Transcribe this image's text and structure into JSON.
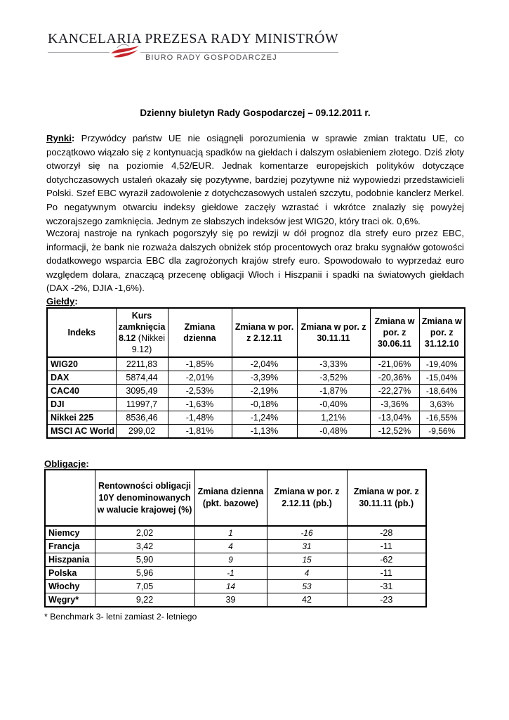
{
  "header": {
    "org_name": "KANCELARIA PREZESA RADY MINISTRÓW",
    "sub_org": "BIURO RADY GOSPODARCZEJ",
    "logo_icon": "red-swoosh-flag-icon",
    "colors": {
      "accent_red": "#c5242b",
      "rule_gray": "#a8a8ac",
      "subtitle_gray": "#47474c",
      "ink": "#000000"
    }
  },
  "document": {
    "title": "Dzienny biuletyn Rady Gospodarczej – 09.12.2011 r.",
    "paragraphs": [
      {
        "label": "Rynki",
        "label_suffix": ":",
        "text": "Przywódcy państw UE nie osiągnęli porozumienia w sprawie zmian traktatu UE, co początkowo wiązało się z kontynuacją spadków na giełdach i dalszym osłabieniem złotego. Dziś złoty otworzył się na poziomie 4,52/EUR. Jednak komentarze europejskich polityków dotyczące dotychczasowych ustaleń okazały się pozytywne, bardziej pozytywne niż wypowiedzi przedstawicieli Polski. Szef EBC wyraził zadowolenie z dotychczasowych ustaleń szczytu, podobnie kanclerz Merkel. Po negatywnym otwarciu indeksy giełdowe zaczęły wzrastać i wkrótce znalazły się powyżej wczorajszego zamknięcia. Jednym ze słabszych indeksów jest WIG20, który traci ok. 0,6%."
      },
      {
        "label": "",
        "label_suffix": "",
        "text": "Wczoraj nastroje na rynkach pogorszyły się po rewizji w dół prognoz dla strefy euro przez EBC, informacji, że bank nie rozważa dalszych obniżek stóp procentowych oraz braku sygnałów gotowości dodatkowego wsparcia EBC dla zagrożonych krajów strefy euro. Spowodowało to wyprzedaż euro względem dolara, znaczącą przecenę obligacji Włoch i Hiszpanii i spadki na światowych giełdach (DAX -2%, DJIA -1,6%)."
      }
    ]
  },
  "markets_section": {
    "heading": "Giełdy",
    "heading_suffix": ":",
    "table": {
      "headers": [
        {
          "bold": "Indeks",
          "normal": ""
        },
        {
          "bold": "Kurs zamknięcia 8.12",
          "normal": " (Nikkei 9.12)"
        },
        {
          "bold": "Zmiana dzienna",
          "normal": ""
        },
        {
          "bold": "Zmiana w por. z 2.12.11",
          "normal": ""
        },
        {
          "bold": "Zmiana w por. z 30.11.11",
          "normal": ""
        },
        {
          "bold": "Zmiana w por. z 30.06.11",
          "normal": ""
        },
        {
          "bold": "Zmiana w por. z 31.12.10",
          "normal": ""
        }
      ],
      "rows": [
        [
          "WIG20",
          "2211,83",
          "-1,85%",
          "-2,04%",
          "-3,33%",
          "-21,06%",
          "-19,40%"
        ],
        [
          "DAX",
          "5874,44",
          "-2,01%",
          "-3,39%",
          "-3,52%",
          "-20,36%",
          "-15,04%"
        ],
        [
          "CAC40",
          "3095,49",
          "-2,53%",
          "-2,19%",
          "-1,87%",
          "-22,27%",
          "-18,64%"
        ],
        [
          "DJI",
          "11997,7",
          "-1,63%",
          "-0,18%",
          "-0,40%",
          "-3,36%",
          "3,63%"
        ],
        [
          "Nikkei 225",
          "8536,46",
          "-1,48%",
          "-1,24%",
          "1,21%",
          "-13,04%",
          "-16,55%"
        ],
        [
          "MSCI AC World",
          "299,02",
          "-1,81%",
          "-1,13%",
          "-0,48%",
          "-12,52%",
          "-9,56%"
        ]
      ]
    }
  },
  "bonds_section": {
    "heading": "Obligacje",
    "heading_suffix": ":",
    "table": {
      "headers": [
        {
          "bold": "",
          "normal": ""
        },
        {
          "bold": "Rentowności obligacji 10Y denominowanych w walucie krajowej (%)",
          "normal": ""
        },
        {
          "bold": "Zmiana dzienna (pkt. bazowe)",
          "normal": ""
        },
        {
          "bold": "Zmiana w por. z 2.12.11 (pb.)",
          "normal": ""
        },
        {
          "bold": "Zmiana w por. z 30.11.11 (pb.)",
          "normal": ""
        }
      ],
      "rows": [
        [
          "Niemcy",
          "2,02",
          "1",
          "-16",
          "-28"
        ],
        [
          "Francja",
          "3,42",
          "4",
          "31",
          "-11"
        ],
        [
          "Hiszpania",
          "5,90",
          "9",
          "15",
          "-62"
        ],
        [
          "Polska",
          "5,96",
          "-1",
          "4",
          "-11"
        ],
        [
          "Włochy",
          "7,05",
          "14",
          "53",
          "-31"
        ],
        [
          "Węgry*",
          "9,22",
          "39",
          "42",
          "-23"
        ]
      ]
    },
    "footnote": "* Benchmark 3- letni zamiast 2- letniego"
  }
}
